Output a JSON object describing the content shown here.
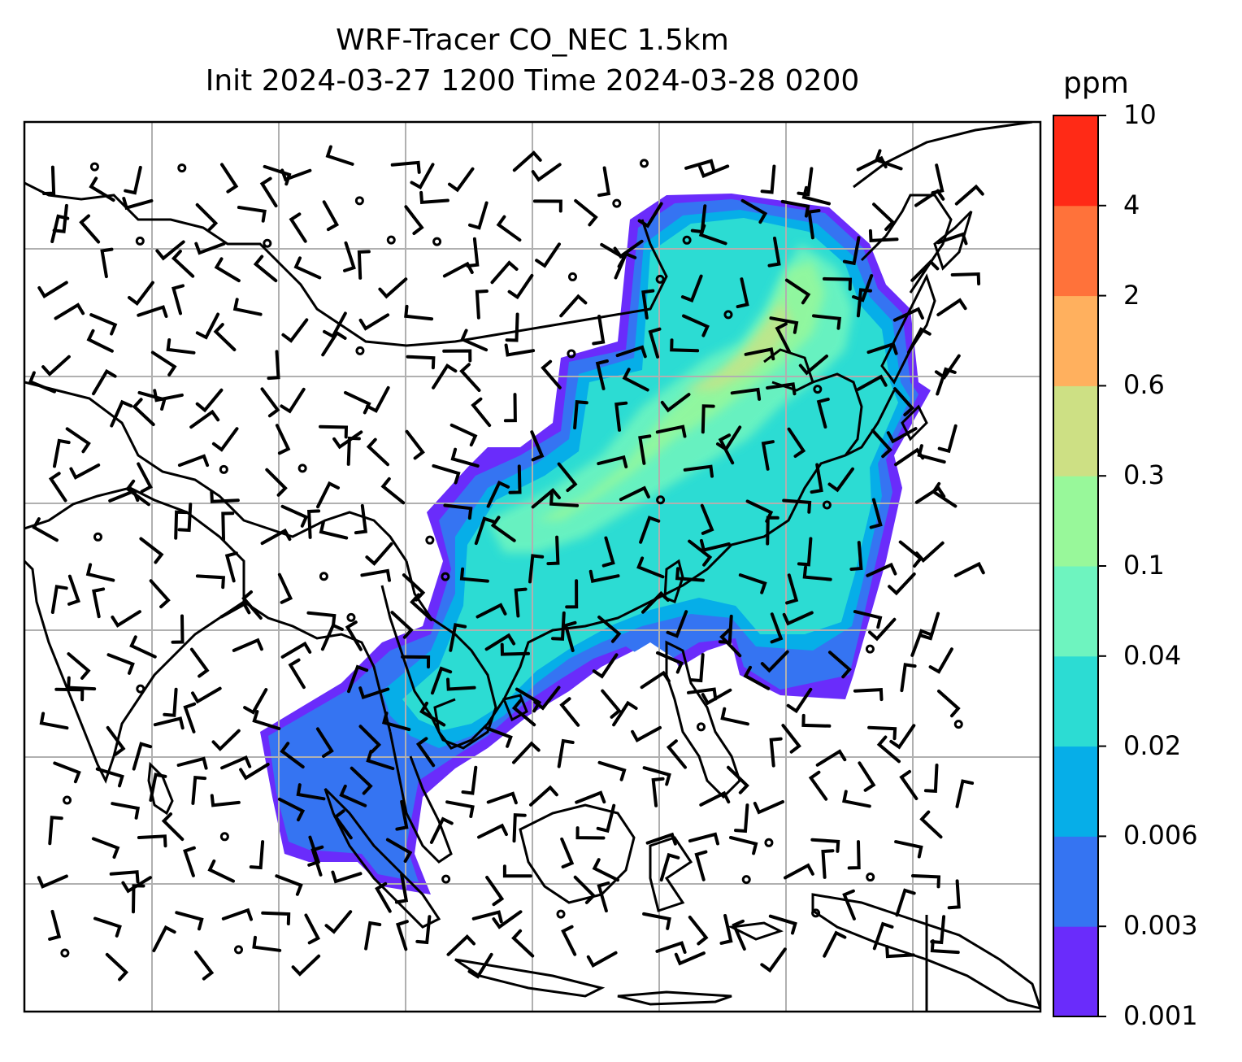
{
  "title": {
    "line1": "WRF-Tracer CO_NEC 1.5km",
    "line2": "Init 2024-03-27 1200 Time 2024-03-28 0200"
  },
  "colorbar": {
    "unit": "ppm",
    "tick_labels": [
      "10",
      "4",
      "2",
      "0.6",
      "0.3",
      "0.1",
      "0.04",
      "0.02",
      "0.006",
      "0.003",
      "0.001"
    ],
    "bin_colors": [
      "#6a2cfb",
      "#3574f2",
      "#06aee8",
      "#2cdcd3",
      "#6ef4bf",
      "#98f89a",
      "#cde084",
      "#ffb05e",
      "#ff723a",
      "#ff2a16"
    ]
  },
  "map": {
    "field": "CO_NEC tracer",
    "level": "1.5km",
    "gridlines": true,
    "overlay": "wind barbs",
    "coastline_color": "#000000"
  }
}
